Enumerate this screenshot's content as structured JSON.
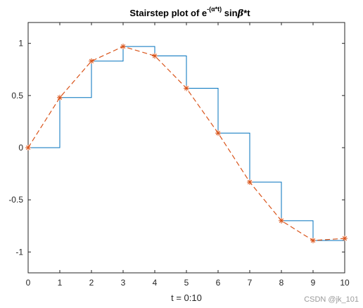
{
  "chart_data": {
    "type": "line",
    "title": "Stairstep plot of e^-(α*t) sinβ*t",
    "title_parts": {
      "base": "Stairstep plot of e",
      "superscript": "-(α*t)",
      "tail_a": " sin",
      "beta": "β",
      "tail_b": "*t"
    },
    "xlabel": "t = 0:10",
    "ylabel": "",
    "xlim": [
      0,
      10
    ],
    "ylim": [
      -1.2,
      1.2
    ],
    "x_ticks": [
      "0",
      "1",
      "2",
      "3",
      "4",
      "5",
      "6",
      "7",
      "8",
      "9",
      "10"
    ],
    "y_ticks": [
      "1",
      "0.5",
      "0",
      "-0.5",
      "-1"
    ],
    "y_tick_values": [
      1,
      0.5,
      0,
      -0.5,
      -1
    ],
    "x": [
      0,
      1,
      2,
      3,
      4,
      5,
      6,
      7,
      8,
      9,
      10
    ],
    "series": [
      {
        "style": "stairs",
        "color": "#0072bd",
        "values": [
          0,
          0.48,
          0.83,
          0.97,
          0.88,
          0.57,
          0.14,
          -0.33,
          -0.7,
          -0.89,
          -0.87
        ]
      },
      {
        "style": "dashed-line-star-markers",
        "color": "#d95319",
        "values": [
          0,
          0.48,
          0.83,
          0.97,
          0.88,
          0.57,
          0.14,
          -0.33,
          -0.7,
          -0.89,
          -0.87
        ]
      }
    ],
    "grid": false,
    "legend": "none"
  },
  "watermark": "CSDN @jk_101"
}
